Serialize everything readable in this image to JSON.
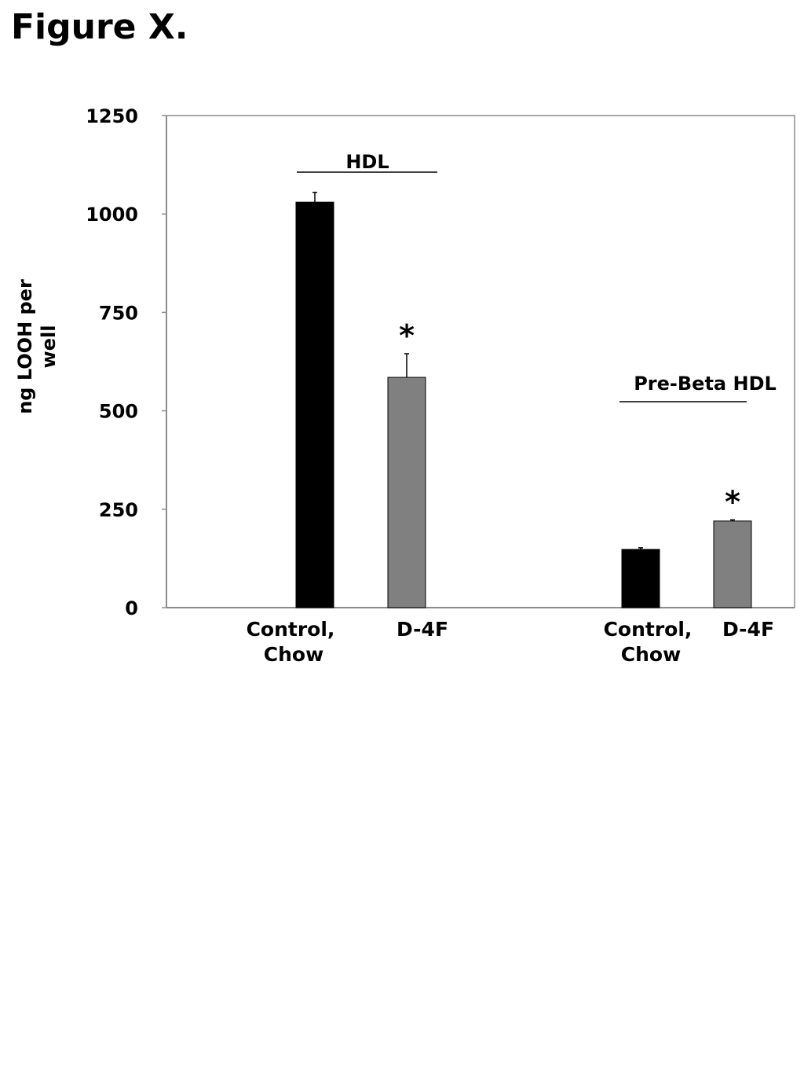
{
  "figure_title": "Figure X.",
  "chart_data": {
    "type": "bar",
    "ylabel": "ng LOOH per well",
    "ylabel_lines": [
      "ng LOOH per",
      "well"
    ],
    "ylim": [
      0,
      1250
    ],
    "yticks": [
      0,
      250,
      500,
      750,
      1000,
      1250
    ],
    "yticks_labels": [
      "0",
      "250",
      "500",
      "750",
      "1000",
      "1250"
    ],
    "grid": false,
    "groups": [
      {
        "name": "HDL",
        "bars": [
          {
            "label_lines": [
              "Control,",
              "Chow"
            ],
            "value": 1030,
            "error": 25,
            "color": "#000000",
            "significant": false
          },
          {
            "label_lines": [
              "D-4F"
            ],
            "value": 585,
            "error": 60,
            "color": "#808080",
            "significant": true
          }
        ]
      },
      {
        "name": "Pre-Beta HDL",
        "bars": [
          {
            "label_lines": [
              "Control,",
              "Chow"
            ],
            "value": 148,
            "error": 4,
            "color": "#000000",
            "significant": false
          },
          {
            "label_lines": [
              "D-4F"
            ],
            "value": 220,
            "error": 3,
            "color": "#808080",
            "significant": true
          }
        ]
      }
    ],
    "significance_marker": "*"
  }
}
